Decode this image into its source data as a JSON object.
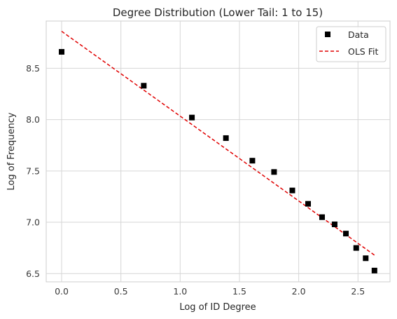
{
  "chart_data": {
    "type": "scatter",
    "title": "Degree Distribution (Lower Tail: 1 to 15)",
    "xlabel": "Log of ID Degree",
    "ylabel": "Log of Frequency",
    "xlim": [
      -0.13,
      2.77
    ],
    "ylim": [
      6.42,
      8.96
    ],
    "xticks": [
      0.0,
      0.5,
      1.0,
      1.5,
      2.0,
      2.5
    ],
    "yticks": [
      6.5,
      7.0,
      7.5,
      8.0,
      8.5
    ],
    "xtick_labels": [
      "0.0",
      "0.5",
      "1.0",
      "1.5",
      "2.0",
      "2.5"
    ],
    "ytick_labels": [
      "6.5",
      "7.0",
      "7.5",
      "8.0",
      "8.5"
    ],
    "grid": true,
    "legend_position": "top-right",
    "series": [
      {
        "name": "Data",
        "kind": "scatter",
        "marker": "square",
        "color": "#000000",
        "x": [
          0.0,
          0.693,
          1.099,
          1.386,
          1.609,
          1.792,
          1.946,
          2.079,
          2.197,
          2.303,
          2.398,
          2.485,
          2.565,
          2.639
        ],
        "y": [
          8.66,
          8.33,
          8.02,
          7.82,
          7.6,
          7.49,
          7.31,
          7.18,
          7.05,
          6.98,
          6.89,
          6.75,
          6.65,
          6.53
        ]
      },
      {
        "name": "OLS Fit",
        "kind": "line",
        "dash": "dashed",
        "color": "#e00000",
        "x": [
          0.0,
          2.639
        ],
        "y": [
          8.86,
          6.68
        ]
      }
    ]
  }
}
